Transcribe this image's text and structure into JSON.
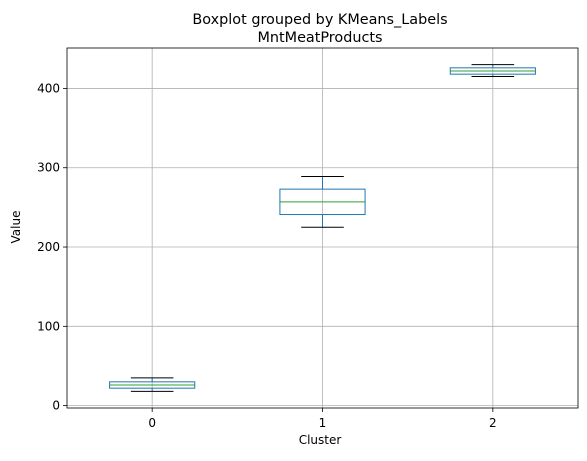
{
  "chart_data": {
    "type": "box",
    "suptitle": "Boxplot grouped by KMeans_Labels",
    "title": "MntMeatProducts",
    "xlabel": "Cluster",
    "ylabel": "Value",
    "ylim": [
      -3,
      451
    ],
    "yticks": [
      0,
      100,
      200,
      300,
      400
    ],
    "grid": true,
    "categories": [
      "0",
      "1",
      "2"
    ],
    "boxes": [
      {
        "category": "0",
        "whisker_low": 18,
        "q1": 22,
        "median": 26,
        "q3": 30,
        "whisker_high": 35
      },
      {
        "category": "1",
        "whisker_low": 225,
        "q1": 241,
        "median": 257,
        "q3": 273,
        "whisker_high": 289
      },
      {
        "category": "2",
        "whisker_low": 415,
        "q1": 418,
        "median": 422,
        "q3": 426,
        "whisker_high": 430
      }
    ],
    "colors": {
      "box": "#1f77b4",
      "median": "#2ca02c",
      "whisker": "#000000",
      "grid": "#b0b0b0"
    }
  }
}
